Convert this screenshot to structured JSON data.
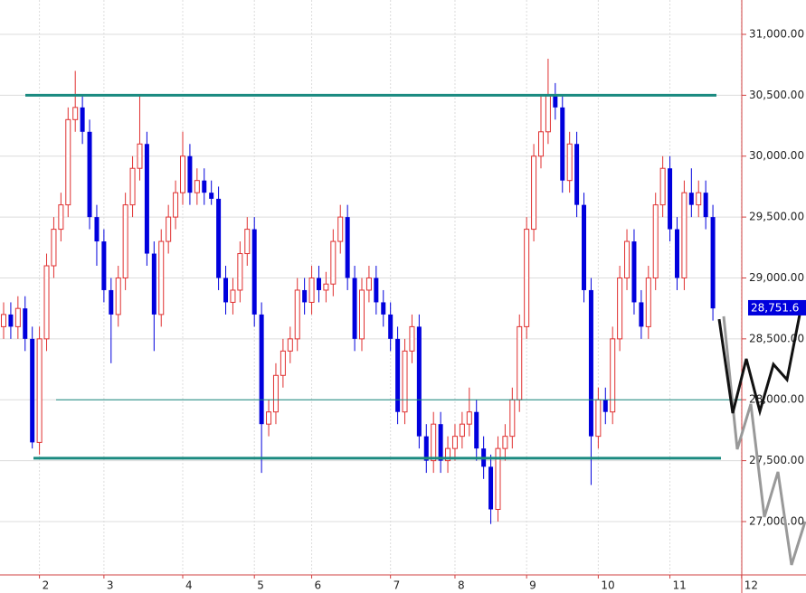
{
  "chart_data": {
    "type": "candlestick",
    "categories": [
      null,
      null,
      null,
      null,
      null,
      "2",
      null,
      null,
      null,
      null,
      null,
      null,
      null,
      null,
      "3",
      null,
      null,
      null,
      null,
      null,
      null,
      null,
      null,
      null,
      null,
      "4",
      null,
      null,
      null,
      null,
      null,
      null,
      null,
      null,
      null,
      "5",
      null,
      null,
      null,
      null,
      null,
      null,
      null,
      "6",
      null,
      null,
      null,
      null,
      null,
      null,
      null,
      null,
      null,
      null,
      "7",
      null,
      null,
      null,
      null,
      null,
      null,
      null,
      null,
      "8",
      null,
      null,
      null,
      null,
      null,
      null,
      null,
      null,
      null,
      "9",
      null,
      null,
      null,
      null,
      null,
      null,
      null,
      null,
      null,
      "10",
      null,
      null,
      null,
      null,
      null,
      null,
      null,
      null,
      null,
      "11",
      null,
      null,
      null,
      null,
      null,
      null,
      null,
      null,
      null,
      "12"
    ],
    "open": [
      28600,
      28700,
      28600,
      28750,
      28500,
      27650,
      28500,
      29100,
      29400,
      29600,
      30300,
      30400,
      30200,
      29500,
      29300,
      28900,
      28700,
      29000,
      29600,
      29900,
      30100,
      29200,
      28700,
      29300,
      29500,
      29700,
      30000,
      29700,
      29800,
      29700,
      29650,
      29000,
      28800,
      28900,
      29200,
      29400,
      28700,
      27800,
      27900,
      28200,
      28400,
      28500,
      28900,
      28800,
      29000,
      28900,
      28950,
      29300,
      29500,
      29000,
      28500,
      28900,
      29000,
      28800,
      28700,
      28500,
      27900,
      28400,
      28600,
      27700,
      27500,
      27800,
      27500,
      27600,
      27700,
      27800,
      27900,
      27600,
      27450,
      27100,
      27600,
      27700,
      28000,
      28600,
      29400,
      30000,
      30200,
      30500,
      30400,
      29800,
      30100,
      29600,
      28900,
      27700,
      28000,
      27900,
      28500,
      29000,
      29300,
      28800,
      28600,
      29000,
      29600,
      29900,
      29400,
      29000,
      29700,
      29600,
      29700,
      29500,
      null,
      null,
      null,
      null
    ],
    "high": [
      28800,
      28800,
      28850,
      28850,
      28600,
      28600,
      29200,
      29500,
      29700,
      30400,
      30700,
      30500,
      30300,
      29600,
      29400,
      29000,
      29100,
      29700,
      30000,
      30500,
      30200,
      29300,
      29400,
      29600,
      29800,
      30200,
      30100,
      29900,
      29900,
      29800,
      29750,
      29100,
      29000,
      29300,
      29500,
      29500,
      28800,
      28000,
      28300,
      28500,
      28600,
      29000,
      29000,
      29100,
      29100,
      29050,
      29400,
      29600,
      29600,
      29100,
      29000,
      29100,
      29100,
      28900,
      28800,
      28600,
      28500,
      28700,
      28700,
      27800,
      27900,
      27900,
      27700,
      27800,
      27900,
      28100,
      28000,
      27700,
      27550,
      27700,
      27800,
      28100,
      28700,
      29500,
      30100,
      30500,
      30800,
      30600,
      30500,
      30200,
      30200,
      29700,
      29000,
      28100,
      28100,
      28600,
      29100,
      29400,
      29400,
      28900,
      29100,
      29700,
      30000,
      30000,
      29500,
      29800,
      29900,
      29800,
      29800,
      29600,
      null,
      null,
      null,
      null
    ],
    "low": [
      28500,
      28500,
      28500,
      28400,
      27600,
      27550,
      28400,
      29000,
      29300,
      29500,
      30200,
      30100,
      29400,
      29100,
      28800,
      28300,
      28600,
      28900,
      29500,
      29800,
      29100,
      28400,
      28600,
      29200,
      29400,
      29600,
      29600,
      29600,
      29600,
      29600,
      28900,
      28700,
      28700,
      28800,
      29100,
      28600,
      27400,
      27700,
      27800,
      28100,
      28300,
      28400,
      28700,
      28700,
      28800,
      28800,
      28850,
      29200,
      28900,
      28400,
      28400,
      28800,
      28700,
      28600,
      28400,
      27800,
      27800,
      28300,
      27600,
      27400,
      27400,
      27400,
      27400,
      27500,
      27600,
      27700,
      27500,
      27350,
      26980,
      27000,
      27500,
      27600,
      27900,
      28500,
      29300,
      29900,
      30100,
      30300,
      29700,
      29700,
      29500,
      28800,
      27300,
      27600,
      27800,
      27800,
      28400,
      28900,
      28700,
      28500,
      28500,
      28900,
      29500,
      29300,
      28900,
      28900,
      29500,
      29500,
      29400,
      28650,
      null,
      null,
      null,
      null
    ],
    "close": [
      28700,
      28600,
      28750,
      28500,
      27650,
      28500,
      29100,
      29400,
      29600,
      30300,
      30400,
      30200,
      29500,
      29300,
      28900,
      28700,
      29000,
      29600,
      29900,
      30100,
      29200,
      28700,
      29300,
      29500,
      29700,
      30000,
      29700,
      29800,
      29700,
      29650,
      29000,
      28800,
      28900,
      29200,
      29400,
      28700,
      27800,
      27900,
      28200,
      28400,
      28500,
      28900,
      28800,
      29000,
      28900,
      28950,
      29300,
      29500,
      29000,
      28500,
      28900,
      29000,
      28800,
      28700,
      28500,
      27900,
      28400,
      28600,
      27700,
      27500,
      27800,
      27500,
      27600,
      27700,
      27800,
      27900,
      27600,
      27450,
      27100,
      27600,
      27700,
      28000,
      28600,
      29400,
      30000,
      30200,
      30500,
      30400,
      29800,
      30100,
      29600,
      28900,
      27700,
      28000,
      27900,
      28500,
      29000,
      29300,
      28800,
      28600,
      29000,
      29600,
      29900,
      29400,
      29000,
      29700,
      29600,
      29700,
      29500,
      28750,
      null,
      null,
      null,
      null
    ],
    "up_color": "#e03030",
    "down_color": "#0000dd",
    "ylim": [
      26562,
      31282
    ],
    "yticks": [
      {
        "value": 27000,
        "label": "27,000.00"
      },
      {
        "value": 27500,
        "label": "27,500.00"
      },
      {
        "value": 28000,
        "label": "28,000.00"
      },
      {
        "value": 28500,
        "label": "28,500.00"
      },
      {
        "value": 29000,
        "label": "29,000.00"
      },
      {
        "value": 29500,
        "label": "29,500.00"
      },
      {
        "value": 30000,
        "label": "30,000.00"
      },
      {
        "value": 30500,
        "label": "30,500.00"
      },
      {
        "value": 31000,
        "label": "31,000.00"
      }
    ],
    "grid": true,
    "hlines": [
      {
        "value": 30500,
        "color": "#1a8a80"
      },
      {
        "value": 27520,
        "color": "#1a8a80"
      },
      {
        "value": 28000,
        "color": "#1a8a80"
      }
    ],
    "lines": [
      {
        "color": "#111111",
        "values": [
          28662,
          27890,
          28336,
          27905,
          28291,
          28165,
          28737
        ]
      },
      {
        "color": "#999999",
        "values": [
          28685,
          27594,
          27965,
          27037,
          27408,
          26644,
          27000
        ]
      }
    ],
    "last_price": {
      "value": 28751.6,
      "label": "28,751.6"
    }
  }
}
